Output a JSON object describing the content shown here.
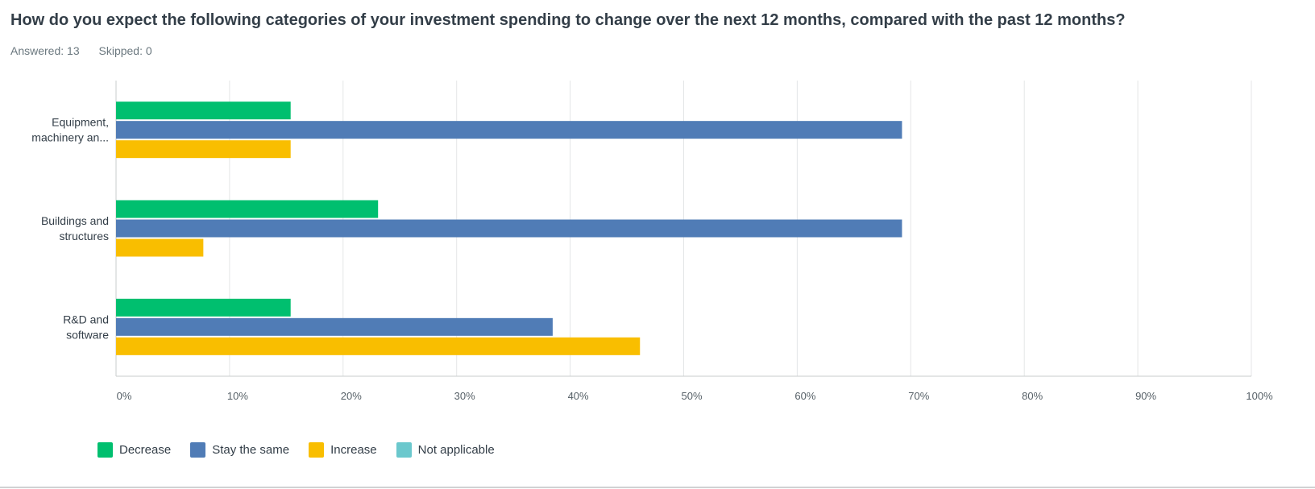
{
  "question": {
    "title": "How do you expect the following categories of your investment spending to change over the next 12 months, compared with the past 12 months?",
    "answered": "Answered: 13",
    "skipped": "Skipped: 0"
  },
  "chart_data": {
    "type": "bar",
    "orientation": "horizontal",
    "categories": [
      [
        "Equipment,",
        "machinery an..."
      ],
      [
        "Buildings and",
        "structures"
      ],
      [
        "R&D and",
        "software"
      ]
    ],
    "series": [
      {
        "name": "Decrease",
        "color": "#00bf6f",
        "values": [
          15.38,
          23.08,
          15.38
        ]
      },
      {
        "name": "Stay the same",
        "color": "#507cb6",
        "values": [
          69.23,
          69.23,
          38.46
        ]
      },
      {
        "name": "Increase",
        "color": "#f9be00",
        "values": [
          15.38,
          7.69,
          46.15
        ]
      },
      {
        "name": "Not applicable",
        "color": "#6bc8cd",
        "values": [
          0,
          0,
          0
        ]
      }
    ],
    "xlim": [
      0,
      100
    ],
    "xticks": [
      "0%",
      "10%",
      "20%",
      "30%",
      "40%",
      "50%",
      "60%",
      "70%",
      "80%",
      "90%",
      "100%"
    ],
    "grid": true,
    "legend_position": "bottom-left"
  }
}
